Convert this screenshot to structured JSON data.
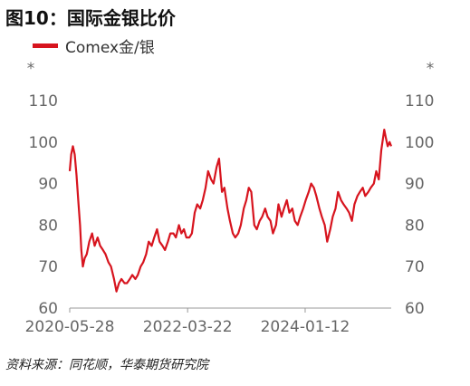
{
  "title": "图10：国际金银比价",
  "source": "资料来源：同花顺，华泰期货研究院",
  "colors": {
    "series": "#d7141e",
    "axis": "#999999",
    "text": "#666666"
  },
  "chart_data": {
    "type": "line",
    "title": "图10：国际金银比价",
    "series": [
      {
        "name": "Comex金/银",
        "color": "#d7141e",
        "points": [
          [
            "2020-05-28",
            93
          ],
          [
            "2020-06-05",
            97
          ],
          [
            "2020-06-15",
            99
          ],
          [
            "2020-06-25",
            97
          ],
          [
            "2020-07-05",
            92
          ],
          [
            "2020-07-15",
            86
          ],
          [
            "2020-07-25",
            80
          ],
          [
            "2020-08-01",
            74
          ],
          [
            "2020-08-10",
            70
          ],
          [
            "2020-08-20",
            72
          ],
          [
            "2020-09-01",
            73
          ],
          [
            "2020-09-15",
            76
          ],
          [
            "2020-10-01",
            78
          ],
          [
            "2020-10-15",
            75
          ],
          [
            "2020-11-01",
            77
          ],
          [
            "2020-11-15",
            75
          ],
          [
            "2020-12-01",
            74
          ],
          [
            "2020-12-15",
            73
          ],
          [
            "2021-01-01",
            71
          ],
          [
            "2021-01-15",
            70
          ],
          [
            "2021-02-01",
            67
          ],
          [
            "2021-02-15",
            64
          ],
          [
            "2021-03-01",
            66
          ],
          [
            "2021-03-15",
            67
          ],
          [
            "2021-04-01",
            66
          ],
          [
            "2021-04-15",
            66
          ],
          [
            "2021-05-01",
            67
          ],
          [
            "2021-05-15",
            68
          ],
          [
            "2021-06-01",
            67
          ],
          [
            "2021-06-15",
            68
          ],
          [
            "2021-07-01",
            70
          ],
          [
            "2021-07-15",
            71
          ],
          [
            "2021-08-01",
            73
          ],
          [
            "2021-08-15",
            76
          ],
          [
            "2021-09-01",
            75
          ],
          [
            "2021-09-15",
            77
          ],
          [
            "2021-10-01",
            79
          ],
          [
            "2021-10-15",
            76
          ],
          [
            "2021-11-01",
            75
          ],
          [
            "2021-11-15",
            74
          ],
          [
            "2021-12-01",
            76
          ],
          [
            "2021-12-15",
            78
          ],
          [
            "2022-01-01",
            78
          ],
          [
            "2022-01-15",
            77
          ],
          [
            "2022-02-01",
            80
          ],
          [
            "2022-02-15",
            78
          ],
          [
            "2022-03-01",
            79
          ],
          [
            "2022-03-15",
            77
          ],
          [
            "2022-04-01",
            77
          ],
          [
            "2022-04-15",
            78
          ],
          [
            "2022-05-01",
            83
          ],
          [
            "2022-05-15",
            85
          ],
          [
            "2022-06-01",
            84
          ],
          [
            "2022-06-15",
            86
          ],
          [
            "2022-07-01",
            89
          ],
          [
            "2022-07-15",
            93
          ],
          [
            "2022-08-01",
            91
          ],
          [
            "2022-08-15",
            90
          ],
          [
            "2022-09-01",
            94
          ],
          [
            "2022-09-15",
            96
          ],
          [
            "2022-10-01",
            88
          ],
          [
            "2022-10-15",
            89
          ],
          [
            "2022-11-01",
            84
          ],
          [
            "2022-11-15",
            81
          ],
          [
            "2022-12-01",
            78
          ],
          [
            "2022-12-15",
            77
          ],
          [
            "2023-01-01",
            78
          ],
          [
            "2023-01-15",
            80
          ],
          [
            "2023-02-01",
            84
          ],
          [
            "2023-02-15",
            86
          ],
          [
            "2023-03-01",
            89
          ],
          [
            "2023-03-15",
            88
          ],
          [
            "2023-04-01",
            80
          ],
          [
            "2023-04-15",
            79
          ],
          [
            "2023-05-01",
            81
          ],
          [
            "2023-05-15",
            82
          ],
          [
            "2023-06-01",
            84
          ],
          [
            "2023-06-15",
            82
          ],
          [
            "2023-07-01",
            81
          ],
          [
            "2023-07-15",
            78
          ],
          [
            "2023-08-01",
            80
          ],
          [
            "2023-08-15",
            85
          ],
          [
            "2023-09-01",
            82
          ],
          [
            "2023-09-15",
            84
          ],
          [
            "2023-10-01",
            86
          ],
          [
            "2023-10-15",
            83
          ],
          [
            "2023-11-01",
            84
          ],
          [
            "2023-11-15",
            81
          ],
          [
            "2023-12-01",
            80
          ],
          [
            "2023-12-15",
            82
          ],
          [
            "2024-01-01",
            84
          ],
          [
            "2024-01-15",
            86
          ],
          [
            "2024-02-01",
            88
          ],
          [
            "2024-02-15",
            90
          ],
          [
            "2024-03-01",
            89
          ],
          [
            "2024-03-15",
            87
          ],
          [
            "2024-04-01",
            84
          ],
          [
            "2024-04-15",
            82
          ],
          [
            "2024-05-01",
            80
          ],
          [
            "2024-05-15",
            76
          ],
          [
            "2024-06-01",
            79
          ],
          [
            "2024-06-15",
            82
          ],
          [
            "2024-07-01",
            84
          ],
          [
            "2024-07-15",
            88
          ],
          [
            "2024-08-01",
            86
          ],
          [
            "2024-08-15",
            85
          ],
          [
            "2024-09-01",
            84
          ],
          [
            "2024-09-15",
            83
          ],
          [
            "2024-10-01",
            81
          ],
          [
            "2024-10-15",
            85
          ],
          [
            "2024-11-01",
            87
          ],
          [
            "2024-11-15",
            88
          ],
          [
            "2024-12-01",
            89
          ],
          [
            "2024-12-15",
            87
          ],
          [
            "2025-01-01",
            88
          ],
          [
            "2025-01-15",
            89
          ],
          [
            "2025-02-01",
            90
          ],
          [
            "2025-02-15",
            93
          ],
          [
            "2025-03-01",
            91
          ],
          [
            "2025-03-15",
            98
          ],
          [
            "2025-04-01",
            103
          ],
          [
            "2025-04-10",
            101
          ],
          [
            "2025-04-20",
            99
          ],
          [
            "2025-05-01",
            100
          ],
          [
            "2025-05-10",
            99
          ]
        ]
      }
    ],
    "x_ticks": [
      "2020-05-28",
      "2022-03-22",
      "2024-01-12"
    ],
    "xlim": [
      "2020-05-28",
      "2025-05-10"
    ],
    "y_ticks": [
      60,
      70,
      80,
      90,
      100,
      110
    ],
    "ylim": [
      60,
      110
    ],
    "y_unit_left": "*",
    "y_unit_right": "*",
    "grid": false,
    "legend": "top-left"
  }
}
